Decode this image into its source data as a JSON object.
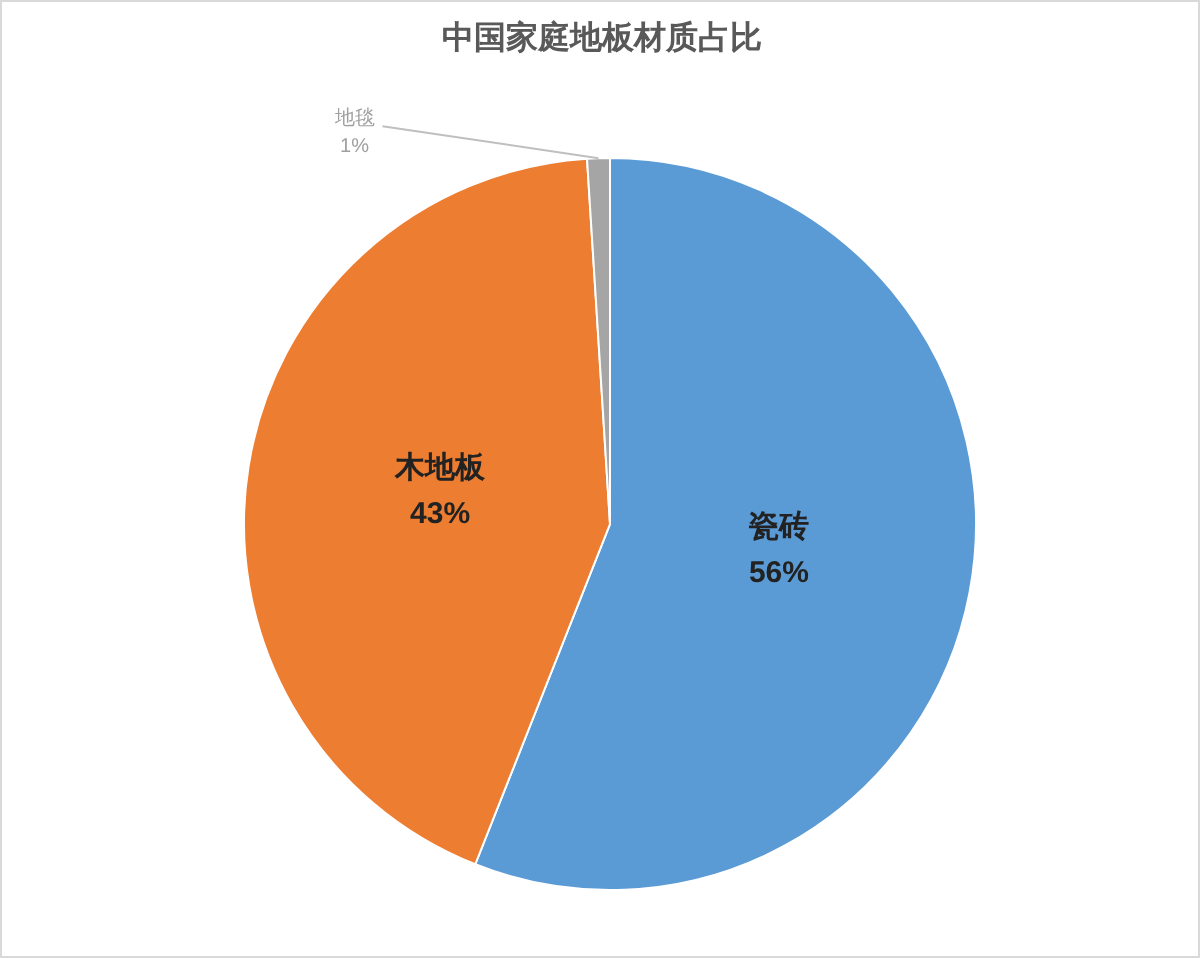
{
  "chart_data": {
    "type": "pie",
    "title": "中国家庭地板材质占比",
    "categories": [
      "瓷砖",
      "木地板",
      "地毯"
    ],
    "values": [
      56,
      43,
      1
    ],
    "colors": [
      "#5b9bd5",
      "#ed7d31",
      "#a5a5a5"
    ],
    "value_labels": [
      "56%",
      "43%",
      "1%"
    ]
  }
}
